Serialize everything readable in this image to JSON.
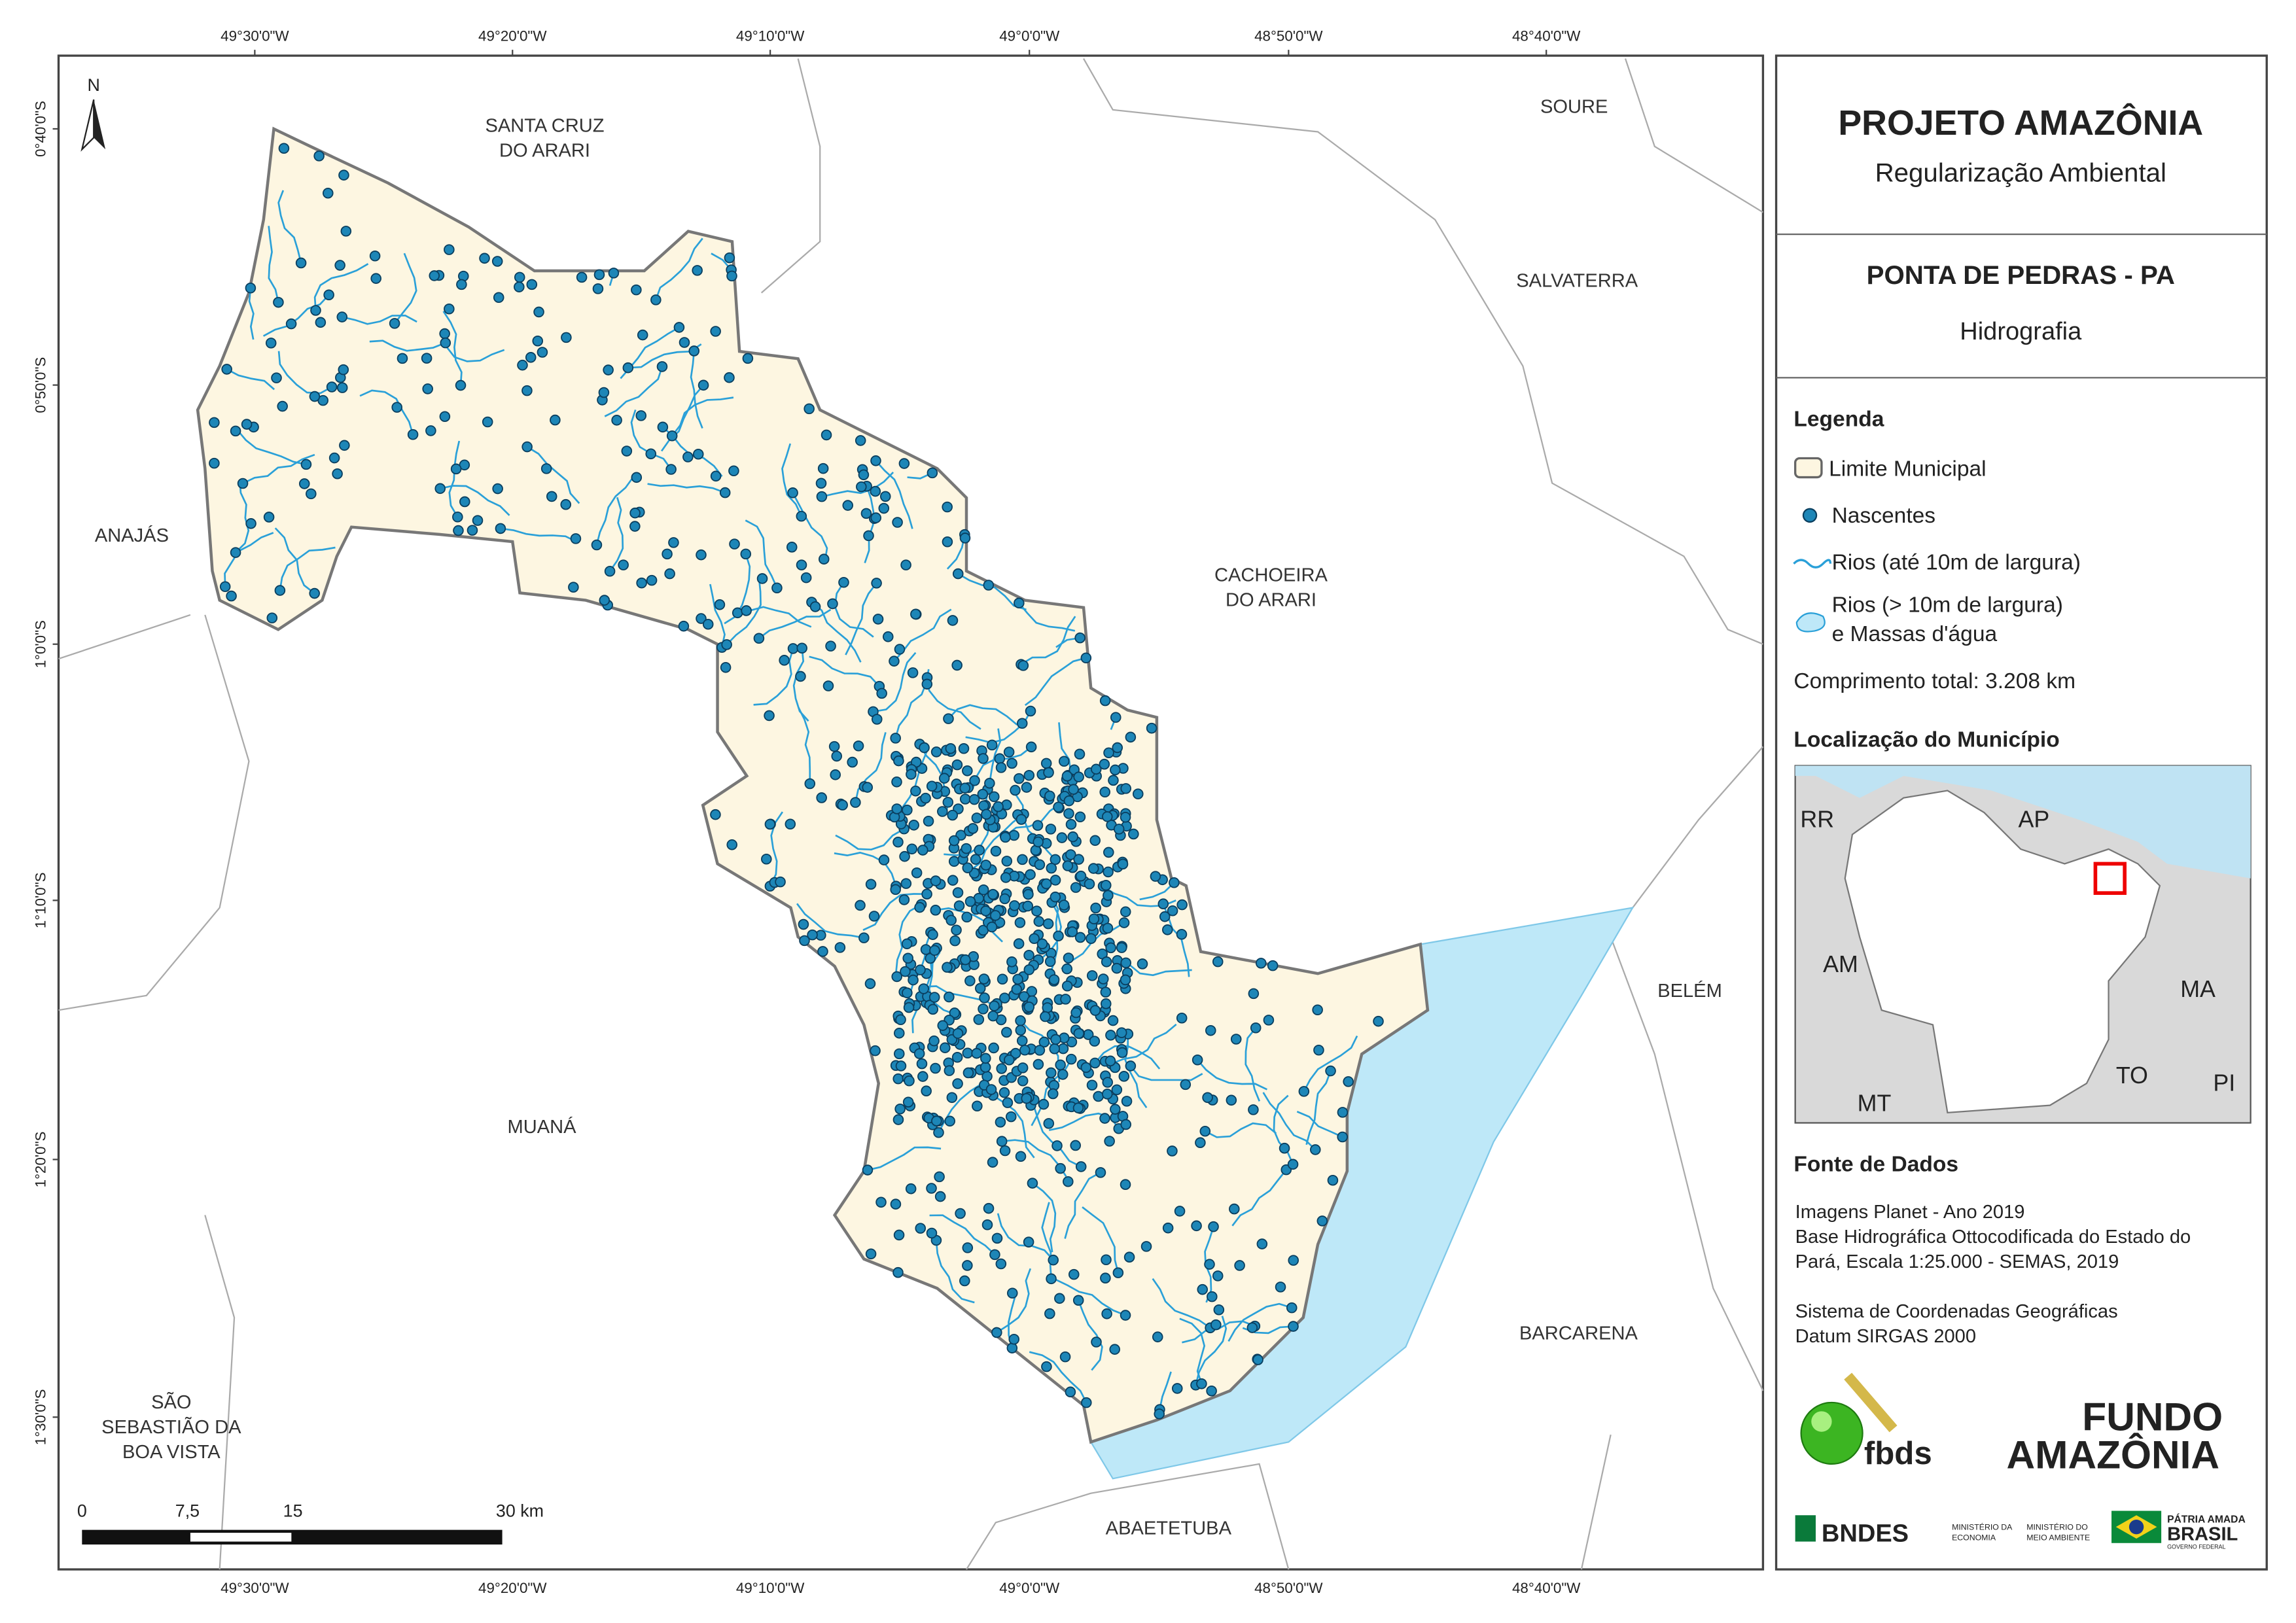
{
  "map": {
    "north": "N",
    "lon_ticks": [
      "49°30'0\"W",
      "49°20'0\"W",
      "49°10'0\"W",
      "49°0'0\"W",
      "48°50'0\"W",
      "48°40'0\"W"
    ],
    "lat_ticks": [
      "0°40'0\"S",
      "0°50'0\"S",
      "1°0'0\"S",
      "1°10'0\"S",
      "1°20'0\"S",
      "1°30'0\"S"
    ],
    "places": [
      {
        "lines": [
          "SANTA CRUZ",
          "DO ARARI"
        ]
      },
      {
        "lines": [
          "SOURE"
        ]
      },
      {
        "lines": [
          "SALVATERRA"
        ]
      },
      {
        "lines": [
          "ANAJÁS"
        ]
      },
      {
        "lines": [
          "CACHOEIRA",
          "DO ARARI"
        ]
      },
      {
        "lines": [
          "BELÉM"
        ]
      },
      {
        "lines": [
          "MUANÁ"
        ]
      },
      {
        "lines": [
          "BARCARENA"
        ]
      },
      {
        "lines": [
          "SÃO",
          "SEBASTIÃO DA",
          "BOA VISTA"
        ]
      },
      {
        "lines": [
          "ABAETETUBA"
        ]
      }
    ],
    "scale_bar": [
      "0",
      "7,5",
      "15",
      "30 km"
    ]
  },
  "header": {
    "title": "PROJETO AMAZÔNIA",
    "subtitle": "Regularização Ambiental"
  },
  "municipality": {
    "name": "PONTA DE PEDRAS - PA",
    "theme": "Hidrografia"
  },
  "legend": {
    "title": "Legenda",
    "items": [
      "Limite Municipal",
      "Nascentes",
      "Rios (até 10m de largura)",
      "Rios (> 10m de largura)",
      "e Massas d'água"
    ],
    "total": "Comprimento total:  3.208 km"
  },
  "location": {
    "title": "Localização do Município",
    "states": [
      "RR",
      "AP",
      "AM",
      "MA",
      "MT",
      "TO",
      "PI"
    ]
  },
  "sources": {
    "title": "Fonte de Dados",
    "lines": [
      "Imagens Planet - Ano 2019",
      "Base Hidrográfica Ottocodificada do Estado do",
      "Pará, Escala 1:25.000 - SEMAS, 2019"
    ],
    "crs_lines": [
      "Sistema de Coordenadas Geográficas",
      "Datum SIRGAS 2000"
    ]
  },
  "logos": {
    "fbds": "fbds",
    "fundo": [
      "FUNDO",
      "AMAZÔNIA"
    ],
    "bndes": "BNDES",
    "ministries": [
      "MINISTÉRIO DA",
      "ECONOMIA",
      "MINISTÉRIO DO",
      "MEIO AMBIENTE"
    ],
    "gov": [
      "PÁTRIA AMADA",
      "BRASIL",
      "GOVERNO FEDERAL"
    ]
  }
}
